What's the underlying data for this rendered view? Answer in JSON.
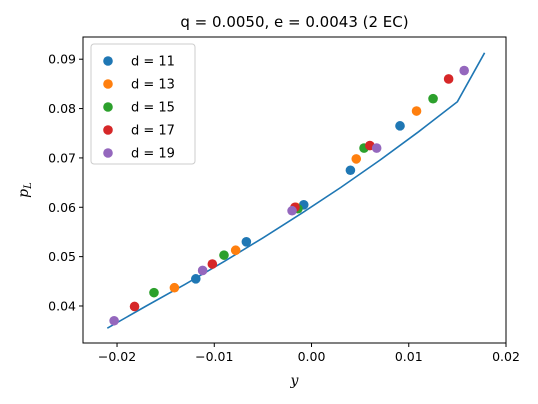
{
  "chart_data": {
    "type": "scatter",
    "title": "q = 0.0050, e = 0.0043 (2 EC)",
    "xlabel": "y",
    "ylabel": "p_L",
    "xlim": [
      -0.0235,
      0.02
    ],
    "ylim": [
      0.0325,
      0.0945
    ],
    "xticks": [
      -0.02,
      -0.01,
      0.0,
      0.01,
      0.02
    ],
    "xtick_labels": [
      "−0.02",
      "−0.01",
      "0.00",
      "0.01",
      "0.02"
    ],
    "yticks": [
      0.04,
      0.05,
      0.06,
      0.07,
      0.08,
      0.09
    ],
    "ytick_labels": [
      "0.04",
      "0.05",
      "0.06",
      "0.07",
      "0.08",
      "0.09"
    ],
    "grid": false,
    "legend_position": "top-left",
    "fit_line": {
      "color": "#1f77b4",
      "x": [
        -0.021,
        -0.017,
        -0.013,
        -0.009,
        -0.005,
        -0.001,
        0.003,
        0.007,
        0.011,
        0.015,
        0.0178
      ],
      "y": [
        0.0355,
        0.04,
        0.0444,
        0.049,
        0.0538,
        0.0588,
        0.064,
        0.0695,
        0.0753,
        0.0814,
        0.0913
      ]
    },
    "series": [
      {
        "name": "d = 11",
        "color": "#1f77b4",
        "x": [
          -0.0119,
          -0.0067,
          -0.0008,
          0.004,
          0.0091
        ],
        "y": [
          0.0455,
          0.053,
          0.0605,
          0.0675,
          0.0765
        ]
      },
      {
        "name": "d = 13",
        "color": "#ff7f0e",
        "x": [
          -0.0141,
          -0.0078,
          -0.0016,
          0.0046,
          0.0108
        ],
        "y": [
          0.0437,
          0.0513,
          0.06,
          0.0698,
          0.0795
        ]
      },
      {
        "name": "d = 15",
        "color": "#2ca02c",
        "x": [
          -0.0162,
          -0.009,
          -0.0014,
          0.0054,
          0.0125
        ],
        "y": [
          0.0427,
          0.0503,
          0.0597,
          0.072,
          0.082
        ]
      },
      {
        "name": "d = 17",
        "color": "#d62728",
        "x": [
          -0.0182,
          -0.0102,
          -0.0017,
          0.006,
          0.0141
        ],
        "y": [
          0.0399,
          0.0485,
          0.06,
          0.0725,
          0.086
        ]
      },
      {
        "name": "d = 19",
        "color": "#9467bd",
        "x": [
          -0.0203,
          -0.0112,
          -0.002,
          0.0067,
          0.0157
        ],
        "y": [
          0.037,
          0.0472,
          0.0593,
          0.072,
          0.0877
        ]
      }
    ]
  }
}
